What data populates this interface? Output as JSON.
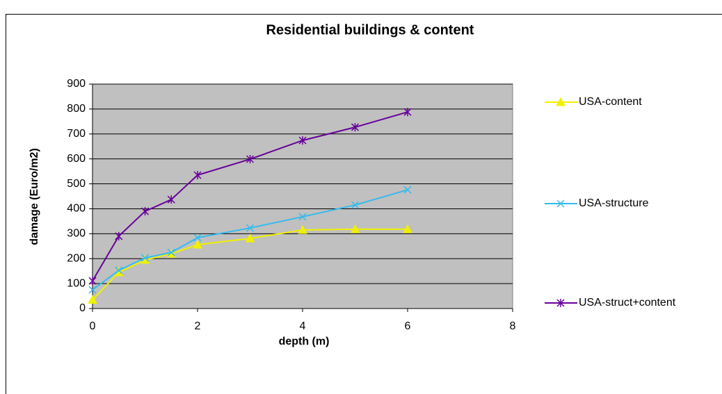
{
  "chart_data": {
    "type": "line",
    "title": "Residential buildings & content",
    "x_label": "depth (m)",
    "y_label": "damage (Euro/m2)",
    "x": [
      0,
      0.5,
      1,
      1.5,
      2,
      3,
      4,
      5,
      6
    ],
    "series": [
      {
        "name": "USA-content",
        "color": "#f0f000",
        "marker": "triangle",
        "values": [
          35,
          145,
          195,
          220,
          256,
          281,
          315,
          318,
          318
        ]
      },
      {
        "name": "USA-structure",
        "color": "#33bbee",
        "marker": "x",
        "values": [
          75,
          153,
          203,
          225,
          284,
          323,
          368,
          415,
          476
        ]
      },
      {
        "name": "USA-struct+content",
        "color": "#660099",
        "marker": "star",
        "values": [
          111,
          290,
          390,
          437,
          535,
          599,
          674,
          727,
          788
        ]
      }
    ],
    "xlim": [
      0,
      8
    ],
    "xticks": [
      0,
      2,
      4,
      6,
      8
    ],
    "ylim": [
      0,
      900
    ],
    "yticks": [
      0,
      100,
      200,
      300,
      400,
      500,
      600,
      700,
      800,
      900
    ],
    "grid": true,
    "legend": "right"
  }
}
